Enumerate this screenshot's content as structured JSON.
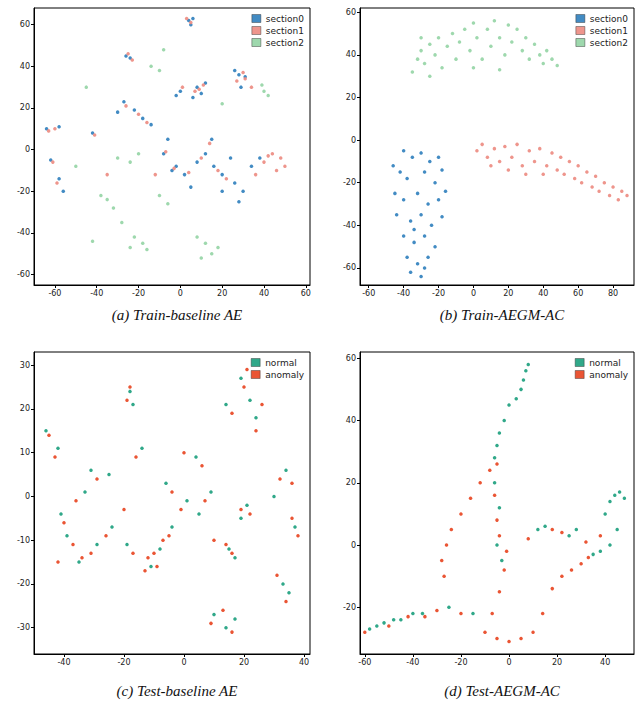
{
  "chart_data": [
    {
      "type": "scatter",
      "title": "(a) Train-baseline AE",
      "marker": "circle",
      "grid": false,
      "legend": "upper right",
      "xlim": [
        -70,
        62
      ],
      "xticks": [
        -60,
        -40,
        -20,
        0,
        20,
        40,
        60
      ],
      "ylim": [
        -65,
        68
      ],
      "yticks": [
        -60,
        -40,
        -20,
        0,
        20,
        40,
        60
      ],
      "series": [
        {
          "name": "section0",
          "color": "#2e7ebc",
          "x": [
            4,
            6,
            5,
            -26,
            -24,
            8,
            10,
            12,
            6,
            0,
            -2,
            28,
            31,
            29,
            26,
            -27,
            -22,
            -18,
            -14,
            -64,
            -58,
            -42,
            -62,
            -58,
            -56,
            -4,
            2,
            8,
            12,
            16,
            20,
            24,
            26,
            30,
            34,
            38,
            -8,
            -6,
            15,
            20,
            28,
            -30,
            -2,
            5
          ],
          "y": [
            62,
            63,
            60,
            45,
            44,
            30,
            27,
            32,
            25,
            28,
            26,
            36,
            35,
            30,
            38,
            23,
            19,
            15,
            12,
            10,
            11,
            8,
            -5,
            -14,
            -20,
            -10,
            -12,
            -6,
            -2,
            -8,
            -12,
            -4,
            -16,
            -20,
            -8,
            -4,
            -2,
            5,
            5,
            -20,
            -25,
            18,
            -8,
            -18
          ]
        },
        {
          "name": "section1",
          "color": "#ec8a80",
          "x": [
            5,
            3,
            -25,
            -23,
            9,
            11,
            7,
            1,
            30,
            31,
            27,
            34,
            -26,
            -20,
            -16,
            -63,
            -60,
            -41,
            -61,
            -59,
            -3,
            4,
            10,
            18,
            40,
            44,
            48,
            50,
            46,
            42,
            36,
            -7,
            14,
            22,
            -12,
            -35
          ],
          "y": [
            61,
            63,
            46,
            43,
            29,
            31,
            28,
            30,
            37,
            34,
            33,
            30,
            21,
            17,
            13,
            9,
            10,
            7,
            -6,
            -16,
            -9,
            -11,
            -4,
            -10,
            -6,
            -2,
            -4,
            -8,
            -10,
            -3,
            -12,
            -1,
            3,
            -14,
            -12,
            -12
          ]
        },
        {
          "name": "section2",
          "color": "#93d4a4",
          "x": [
            40,
            42,
            39,
            -30,
            -24,
            -20,
            -10,
            -6,
            -22,
            -18,
            -16,
            -24,
            8,
            12,
            15,
            10,
            18,
            -42,
            -35,
            -38,
            -32,
            -10,
            -14,
            -45,
            20,
            -8,
            -50,
            -28
          ],
          "y": [
            28,
            26,
            31,
            -4,
            -6,
            -2,
            -22,
            -26,
            -42,
            -45,
            -48,
            -47,
            -42,
            -45,
            -50,
            -52,
            -47,
            -44,
            -24,
            -22,
            -28,
            38,
            40,
            30,
            22,
            48,
            -8,
            -35
          ]
        }
      ]
    },
    {
      "type": "scatter",
      "title": "(b) Train-AEGM-AC",
      "marker": "circle",
      "grid": false,
      "legend": "upper right",
      "xlim": [
        -65,
        92
      ],
      "xticks": [
        -60,
        -40,
        -20,
        0,
        20,
        40,
        60,
        80
      ],
      "ylim": [
        -68,
        62
      ],
      "yticks": [
        -60,
        -40,
        -20,
        0,
        20,
        40,
        60
      ],
      "series": [
        {
          "name": "section0",
          "color": "#2e7ebc",
          "x": [
            -40,
            -35,
            -30,
            -25,
            -20,
            -42,
            -38,
            -28,
            -22,
            -18,
            -45,
            -40,
            -32,
            -26,
            -20,
            -44,
            -36,
            -30,
            -24,
            -18,
            -40,
            -34,
            -28,
            -22,
            -38,
            -32,
            -26,
            -36,
            -30,
            -28,
            -16,
            -46,
            -34
          ],
          "y": [
            -5,
            -8,
            -6,
            -10,
            -8,
            -15,
            -18,
            -15,
            -20,
            -14,
            -25,
            -28,
            -25,
            -30,
            -28,
            -35,
            -38,
            -35,
            -40,
            -36,
            -45,
            -48,
            -45,
            -50,
            -55,
            -58,
            -55,
            -62,
            -64,
            -60,
            -24,
            -12,
            -42
          ]
        },
        {
          "name": "section1",
          "color": "#ec8a80",
          "x": [
            2,
            5,
            8,
            12,
            15,
            18,
            22,
            25,
            28,
            32,
            35,
            38,
            42,
            45,
            48,
            50,
            52,
            55,
            58,
            60,
            62,
            65,
            68,
            70,
            72,
            75,
            78,
            80,
            83,
            85,
            88,
            10,
            20,
            40,
            30
          ],
          "y": [
            -5,
            -2,
            -8,
            -4,
            -10,
            -3,
            -8,
            -2,
            -12,
            -5,
            -10,
            -4,
            -12,
            -6,
            -14,
            -8,
            -16,
            -10,
            -18,
            -12,
            -20,
            -15,
            -22,
            -17,
            -24,
            -20,
            -26,
            -22,
            -28,
            -24,
            -26,
            -12,
            -14,
            -16,
            -16
          ]
        },
        {
          "name": "section2",
          "color": "#93d4a4",
          "x": [
            -35,
            -32,
            -30,
            -28,
            -25,
            -22,
            -20,
            -18,
            -15,
            -12,
            -10,
            -8,
            -5,
            -2,
            0,
            2,
            5,
            8,
            10,
            12,
            15,
            18,
            20,
            22,
            25,
            28,
            30,
            32,
            35,
            38,
            40,
            42,
            45,
            48,
            -25,
            0,
            15,
            -30
          ],
          "y": [
            32,
            38,
            42,
            36,
            45,
            40,
            48,
            34,
            44,
            50,
            38,
            46,
            52,
            42,
            55,
            48,
            38,
            52,
            44,
            56,
            48,
            40,
            54,
            46,
            52,
            42,
            48,
            38,
            45,
            40,
            36,
            42,
            38,
            35,
            30,
            34,
            33,
            48
          ]
        }
      ]
    },
    {
      "type": "scatter",
      "title": "(c) Test-baseline AE",
      "marker": "circle",
      "grid": false,
      "legend": "upper right",
      "xlim": [
        -50,
        42
      ],
      "xticks": [
        -40,
        -20,
        0,
        20,
        40
      ],
      "ylim": [
        -36,
        33
      ],
      "yticks": [
        -30,
        -20,
        -10,
        0,
        10,
        20,
        30
      ],
      "series": [
        {
          "name": "normal",
          "color": "#1a9e7c",
          "x": [
            -46,
            -42,
            -39,
            -41,
            -35,
            -33,
            -29,
            -18,
            -17,
            -19,
            -11,
            -4,
            -6,
            4,
            9,
            1,
            15,
            17,
            21,
            19,
            14,
            19,
            24,
            22,
            34,
            37,
            33,
            35,
            10,
            14,
            17,
            -14,
            -24,
            -31,
            -8,
            5,
            30,
            -25
          ],
          "y": [
            15,
            11,
            -9,
            -4,
            -15,
            1,
            -11,
            24,
            21,
            -11,
            -16,
            -7,
            3,
            9,
            1,
            -1,
            -12,
            -14,
            -2,
            -5,
            21,
            27,
            18,
            22,
            6,
            -7,
            -20,
            -22,
            -27,
            -30,
            -28,
            11,
            -7,
            6,
            -12,
            -4,
            0,
            5
          ]
        },
        {
          "name": "anomaly",
          "color": "#e8431e",
          "x": [
            -45,
            -43,
            -37,
            -40,
            -42,
            -34,
            -36,
            -31,
            -19,
            -18,
            -17,
            -12,
            -13,
            -5,
            -7,
            -4,
            6,
            7,
            -1,
            -10,
            -9,
            16,
            14,
            19,
            22,
            16,
            21,
            20,
            26,
            24,
            32,
            36,
            38,
            36,
            31,
            34,
            9,
            16,
            13,
            -16,
            -26,
            -29,
            0,
            -20,
            10
          ],
          "y": [
            14,
            9,
            -11,
            -6,
            -15,
            -14,
            -1,
            -13,
            22,
            25,
            -13,
            -14,
            -17,
            -9,
            -10,
            1,
            7,
            -1,
            -3,
            -13,
            -16,
            -13,
            -11,
            -3,
            -4,
            19,
            29,
            25,
            21,
            15,
            4,
            3,
            -9,
            -5,
            -18,
            -24,
            -29,
            -31,
            -26,
            9,
            -9,
            4,
            10,
            -3,
            -10
          ]
        }
      ]
    },
    {
      "type": "scatter",
      "title": "(d) Test-AEGM-AC",
      "marker": "circle",
      "grid": false,
      "legend": "upper right",
      "xlim": [
        -62,
        52
      ],
      "xticks": [
        -60,
        -40,
        -20,
        0,
        20,
        40
      ],
      "ylim": [
        -35,
        62
      ],
      "yticks": [
        -20,
        0,
        20,
        40,
        60
      ],
      "series": [
        {
          "name": "normal",
          "color": "#1a9e7c",
          "x": [
            8,
            7,
            6,
            5,
            3,
            0,
            -2,
            -4,
            -5,
            -6,
            -6,
            -4,
            -5,
            -3,
            -58,
            -55,
            -52,
            -48,
            -45,
            -40,
            -36,
            -25,
            -15,
            40,
            42,
            44,
            46,
            48,
            45,
            42,
            38,
            35,
            12,
            15,
            25,
            28
          ],
          "y": [
            58,
            56,
            53,
            50,
            47,
            45,
            40,
            36,
            32,
            28,
            20,
            12,
            0,
            -5,
            -27,
            -26,
            -25,
            -24,
            -24,
            -22,
            -22,
            -20,
            -22,
            10,
            14,
            16,
            17,
            15,
            5,
            0,
            -2,
            -3,
            5,
            6,
            3,
            5
          ]
        },
        {
          "name": "anomaly",
          "color": "#e8431e",
          "x": [
            -8,
            -12,
            -16,
            -20,
            -24,
            -26,
            -28,
            -27,
            -5,
            -6,
            -5,
            -4,
            -2,
            -4,
            -7,
            -10,
            -5,
            0,
            5,
            10,
            14,
            18,
            22,
            26,
            30,
            33,
            -20,
            -30,
            -35,
            -42,
            -50,
            -60,
            8,
            18,
            22,
            32,
            38,
            -1
          ],
          "y": [
            24,
            20,
            15,
            10,
            5,
            0,
            -5,
            -10,
            26,
            16,
            8,
            3,
            -8,
            -15,
            -22,
            -28,
            -30,
            -31,
            -30,
            -28,
            -22,
            -14,
            -10,
            -8,
            -6,
            -4,
            -22,
            -21,
            -23,
            -23,
            -26,
            -28,
            2,
            5,
            4,
            1,
            3,
            -2
          ]
        }
      ]
    }
  ]
}
